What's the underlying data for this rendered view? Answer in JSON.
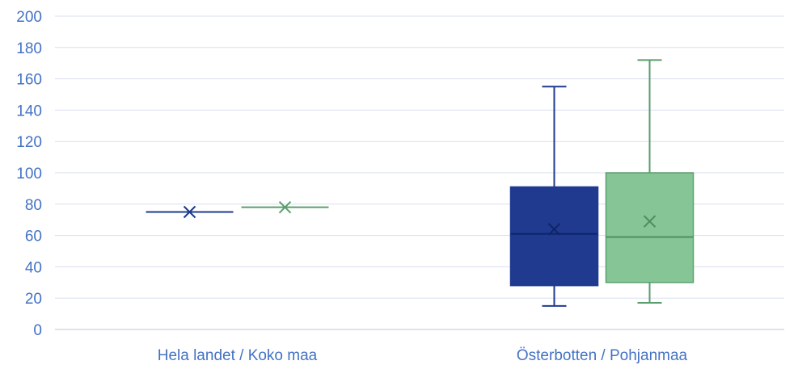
{
  "chart_data": {
    "type": "boxplot",
    "categories": [
      "Hela landet / Koko maa",
      "Österbotten / Pohjanmaa"
    ],
    "ylim": [
      0,
      200
    ],
    "yticks": [
      0,
      20,
      40,
      60,
      80,
      100,
      120,
      140,
      160,
      180,
      200
    ],
    "grid": true,
    "series": [
      {
        "color": "#1f3a8f",
        "boxes": [
          {
            "category": "Hela landet / Koko maa",
            "min": 75,
            "q1": 75,
            "median": 75,
            "q3": 75,
            "max": 75,
            "mean": 75
          },
          {
            "category": "Österbotten / Pohjanmaa",
            "min": 15,
            "q1": 28,
            "median": 61,
            "q3": 91,
            "max": 155,
            "mean": 64
          }
        ]
      },
      {
        "color": "#86c596",
        "edge_color": "#5a9e6d",
        "boxes": [
          {
            "category": "Hela landet / Koko maa",
            "min": 78,
            "q1": 78,
            "median": 78,
            "q3": 78,
            "max": 78,
            "mean": 78
          },
          {
            "category": "Österbotten / Pohjanmaa",
            "min": 17,
            "q1": 30,
            "median": 59,
            "q3": 100,
            "max": 172,
            "mean": 69
          }
        ]
      }
    ]
  }
}
